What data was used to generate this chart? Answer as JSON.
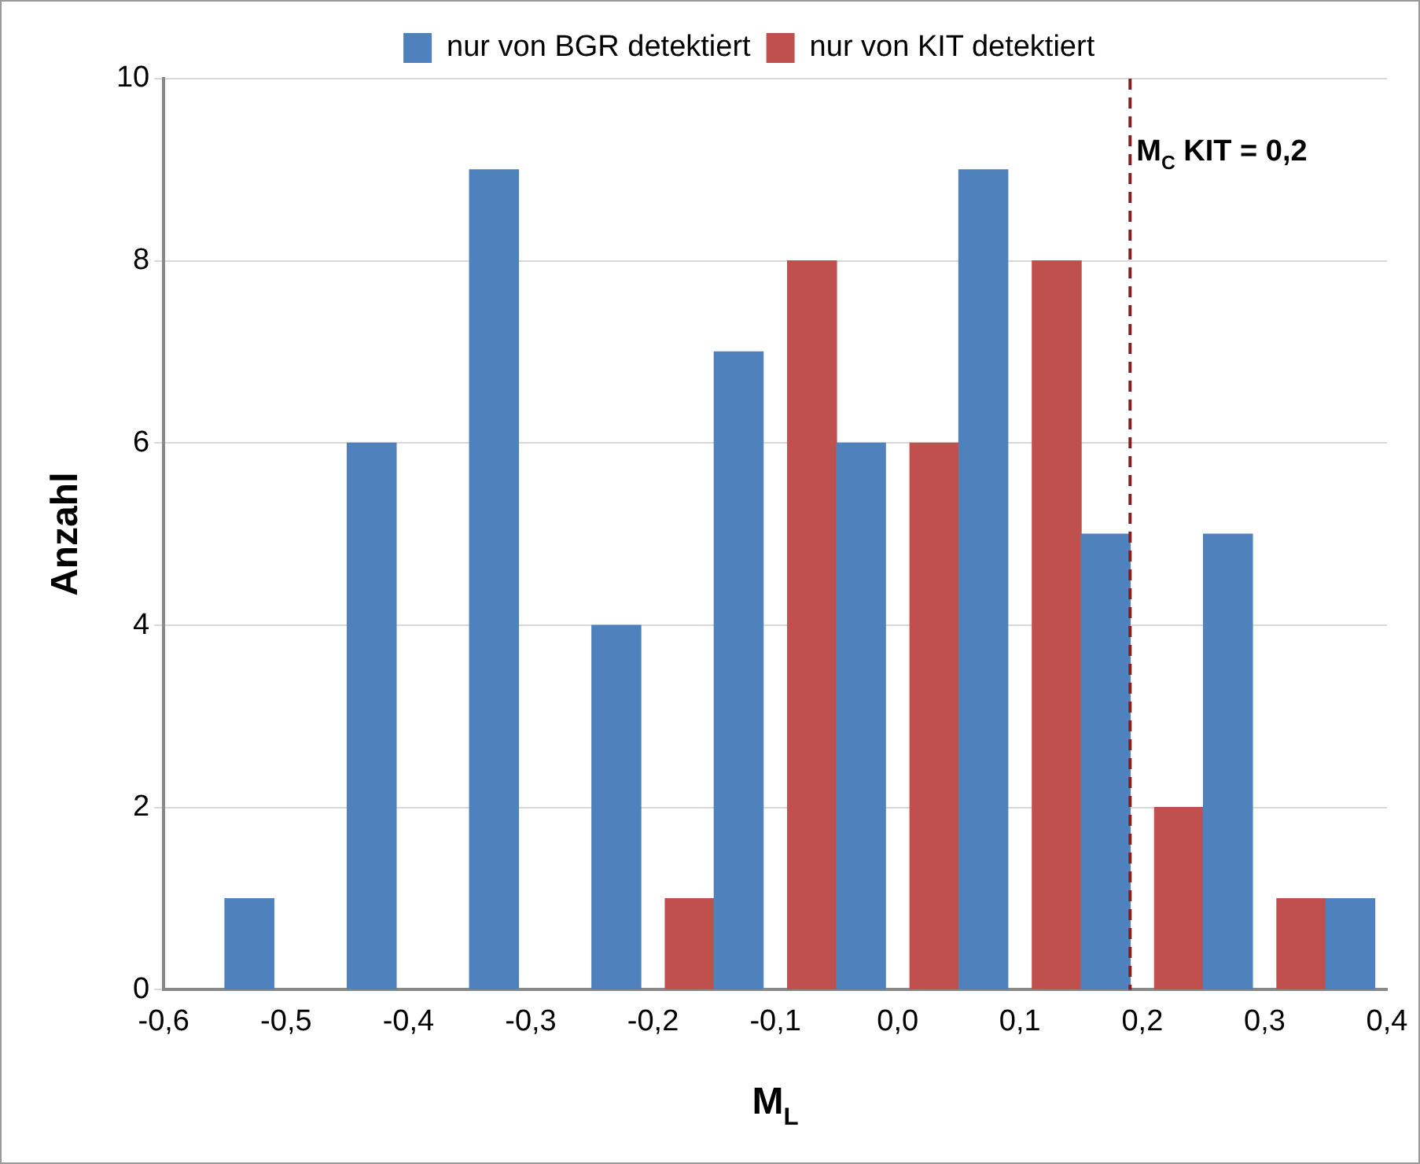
{
  "chart_data": {
    "type": "bar",
    "xlabel": "M$_{L}$",
    "ylabel": "Anzahl",
    "series": [
      {
        "name": "nur von BGR detektiert",
        "color": "#4f81bd",
        "x": [
          -0.53,
          -0.43,
          -0.33,
          -0.23,
          -0.13,
          -0.03,
          0.07,
          0.17,
          0.27,
          0.37
        ],
        "values": [
          1,
          6,
          9,
          4,
          7,
          6,
          9,
          5,
          5,
          1
        ]
      },
      {
        "name": "nur von KIT detektiert",
        "color": "#c0504d",
        "x": [
          -0.17,
          -0.07,
          0.03,
          0.13,
          0.23,
          0.33
        ],
        "values": [
          1,
          8,
          6,
          8,
          2,
          1
        ]
      }
    ],
    "xlim": [
      -0.6,
      0.4
    ],
    "xticks": [
      {
        "value": -0.6,
        "label": "-0,6"
      },
      {
        "value": -0.5,
        "label": "-0,5"
      },
      {
        "value": -0.4,
        "label": "-0,4"
      },
      {
        "value": -0.3,
        "label": "-0,3"
      },
      {
        "value": -0.2,
        "label": "-0,2"
      },
      {
        "value": -0.1,
        "label": "-0,1"
      },
      {
        "value": 0,
        "label": "0,0"
      },
      {
        "value": 0.1,
        "label": "0,1"
      },
      {
        "value": 0.2,
        "label": "0,2"
      },
      {
        "value": 0.3,
        "label": "0,3"
      },
      {
        "value": 0.4,
        "label": "0,4"
      }
    ],
    "ylim": [
      0,
      10
    ],
    "yticks": [
      0,
      2,
      4,
      6,
      8,
      10
    ],
    "grid": "y",
    "legend": "top",
    "ref_lines": [
      {
        "axis": "x",
        "value": 0.19,
        "label": "M$_{C}$ KIT = 0,2",
        "color": "#7f1f1f",
        "line_style": "dashed"
      }
    ]
  }
}
